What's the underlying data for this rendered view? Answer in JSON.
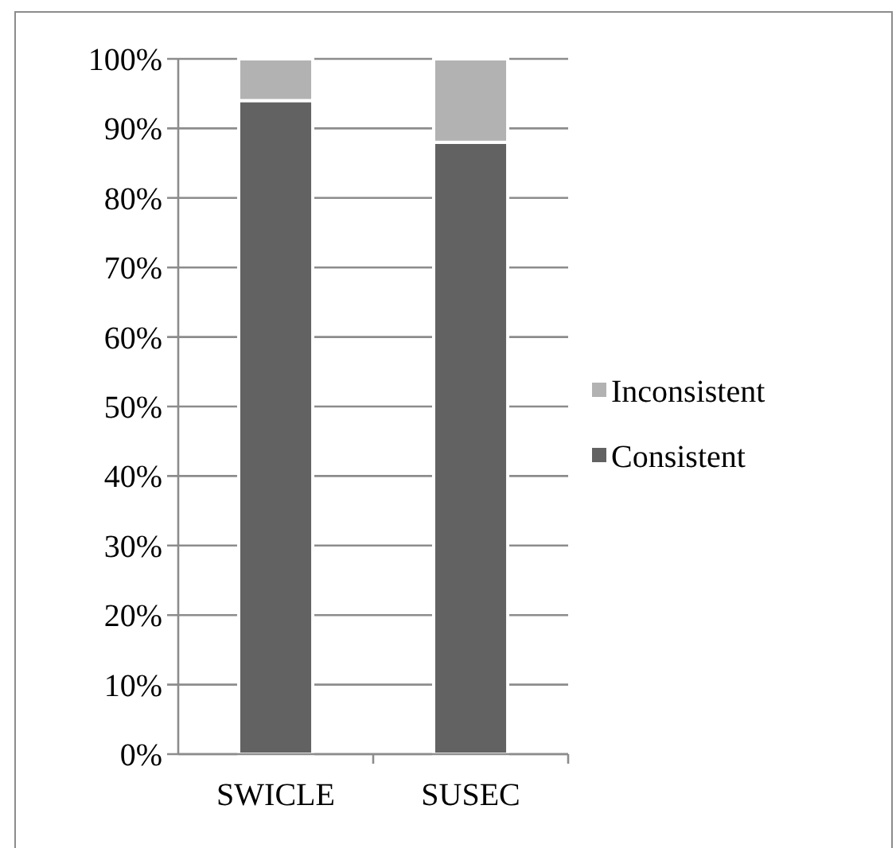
{
  "chart_data": {
    "type": "bar",
    "stacked": true,
    "categories": [
      "SWICLE",
      "SUSEC"
    ],
    "series": [
      {
        "name": "Consistent",
        "color": "#626262",
        "values": [
          94,
          88
        ]
      },
      {
        "name": "Inconsistent",
        "color": "#b2b2b2",
        "values": [
          6,
          12
        ]
      }
    ],
    "ylim": [
      0,
      100
    ],
    "yticks": [
      {
        "value": 0,
        "label": "0%"
      },
      {
        "value": 10,
        "label": "10%"
      },
      {
        "value": 20,
        "label": "20%"
      },
      {
        "value": 30,
        "label": "30%"
      },
      {
        "value": 40,
        "label": "40%"
      },
      {
        "value": 50,
        "label": "50%"
      },
      {
        "value": 60,
        "label": "60%"
      },
      {
        "value": 70,
        "label": "70%"
      },
      {
        "value": 80,
        "label": "80%"
      },
      {
        "value": 90,
        "label": "90%"
      },
      {
        "value": 100,
        "label": "100%"
      }
    ],
    "grid": "y",
    "legend": "right"
  }
}
